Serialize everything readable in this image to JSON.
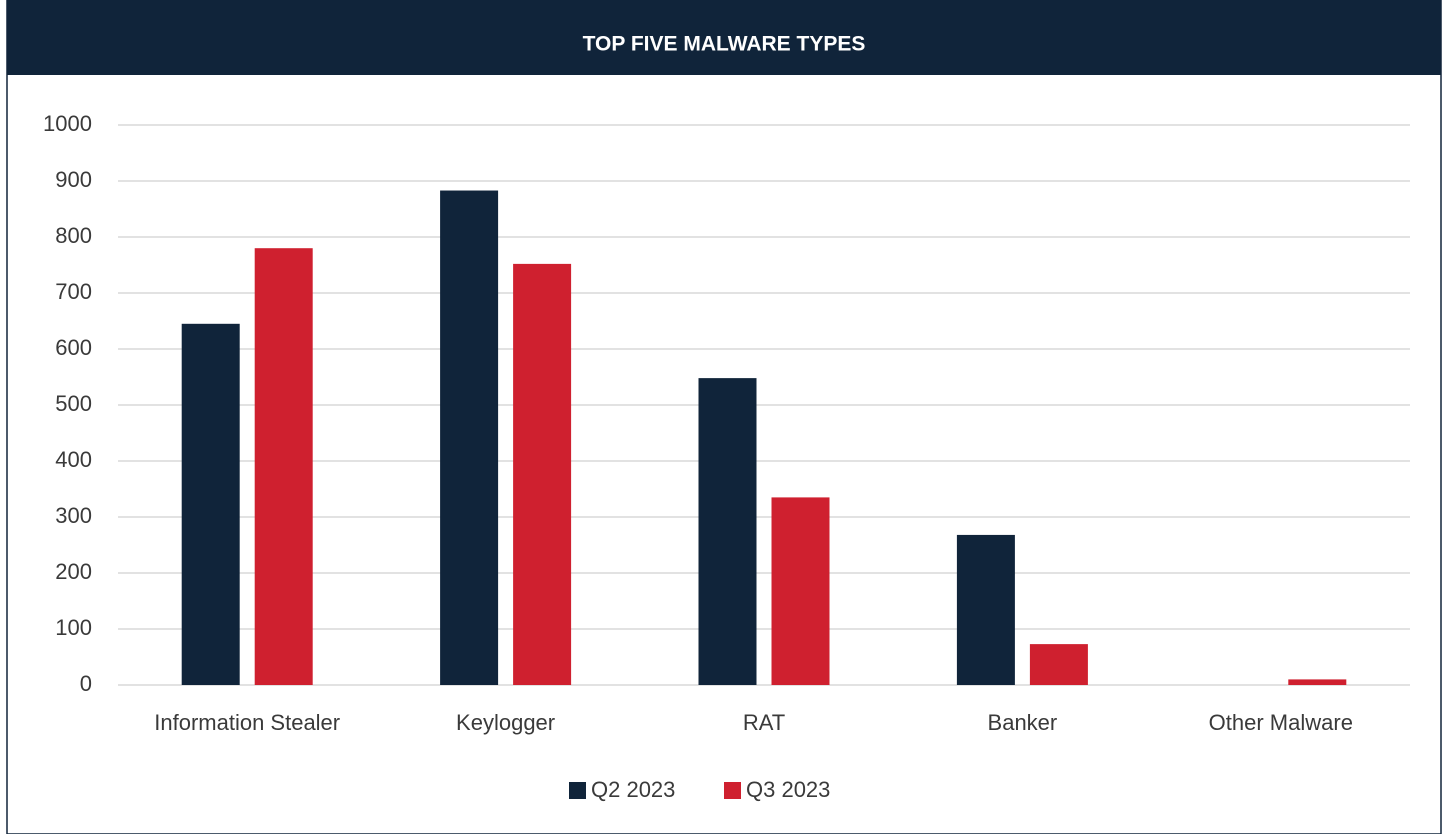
{
  "chart_data": {
    "type": "bar",
    "title": "TOP FIVE MALWARE TYPES",
    "categories": [
      "Information Stealer",
      "Keylogger",
      "RAT",
      "Banker",
      "Other Malware"
    ],
    "series": [
      {
        "name": "Q2 2023",
        "color": "#10243a",
        "values": [
          645,
          883,
          548,
          268,
          0
        ]
      },
      {
        "name": "Q3 2023",
        "color": "#cf202f",
        "values": [
          780,
          752,
          335,
          73,
          10
        ]
      }
    ],
    "ylim": [
      0,
      1000
    ],
    "yticks": [
      0,
      100,
      200,
      300,
      400,
      500,
      600,
      700,
      800,
      900,
      1000
    ],
    "grid": true,
    "legend": "bottom"
  }
}
